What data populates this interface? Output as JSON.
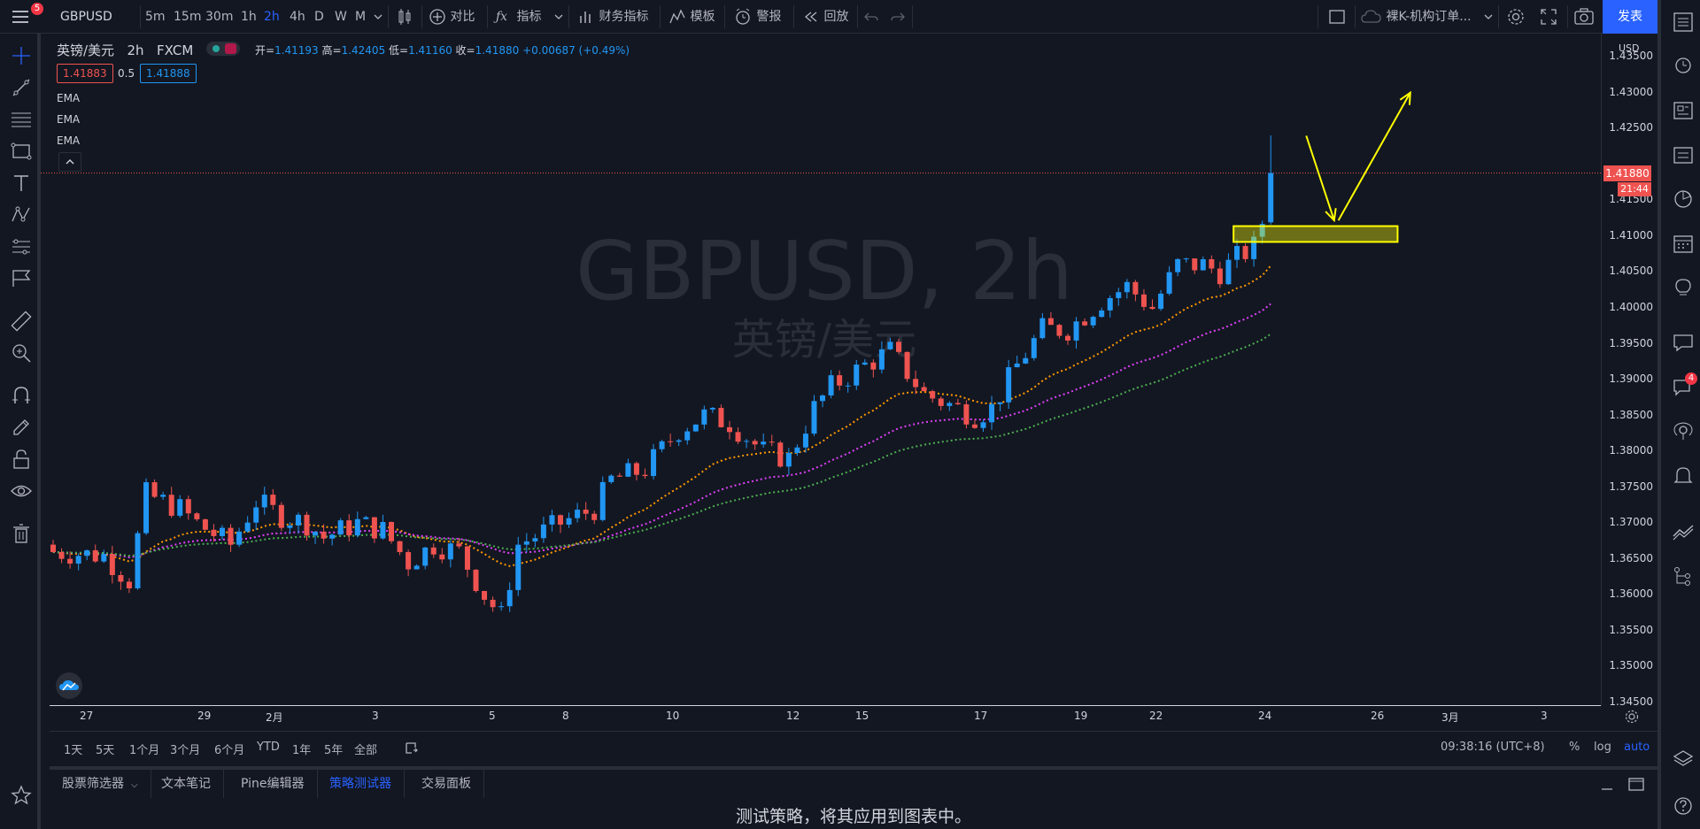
{
  "topbar": {
    "menu_badge": "5",
    "symbol": "GBPUSD",
    "timeframes": [
      "5m",
      "15m",
      "30m",
      "1h",
      "2h",
      "4h",
      "D",
      "W",
      "M"
    ],
    "active_timeframe": "2h",
    "compare": "对比",
    "indicators": "指标",
    "financials": "财务指标",
    "templates": "模板",
    "alerts": "警报",
    "replay": "回放",
    "layout_name": "裸K-机构订单...",
    "publish": "发表"
  },
  "legend": {
    "title": "英镑/美元",
    "interval": "2h",
    "source": "FXCM",
    "open_label": "开=",
    "open": "1.41193",
    "high_label": "高=",
    "high": "1.42405",
    "low_label": "低=",
    "low": "1.41160",
    "close_label": "收=",
    "close": "1.41880",
    "change": "+0.00687 (+0.49%)",
    "bid": "1.41883",
    "spread": "0.5",
    "ask": "1.41888",
    "ema_labels": [
      "EMA",
      "EMA",
      "EMA"
    ]
  },
  "watermark": {
    "main": "GBPUSD, 2h",
    "sub": "英镑/美元"
  },
  "price_axis": {
    "currency": "USD",
    "labels": [
      "1.43500",
      "1.43000",
      "1.42500",
      "1.41500",
      "1.41000",
      "1.40500",
      "1.40000",
      "1.39500",
      "1.39000",
      "1.38500",
      "1.38000",
      "1.37500",
      "1.37000",
      "1.36500",
      "1.36000",
      "1.35500",
      "1.35000",
      "1.34500"
    ],
    "last_price": "1.41880",
    "countdown": "21:44"
  },
  "time_axis": {
    "labels": [
      "27",
      "29",
      "2月",
      "3",
      "5",
      "8",
      "10",
      "12",
      "15",
      "17",
      "19",
      "22",
      "24",
      "26",
      "3月",
      "3"
    ]
  },
  "range_bar": {
    "ranges": [
      "1天",
      "5天",
      "1个月",
      "3个月",
      "6个月",
      "YTD",
      "1年",
      "5年",
      "全部"
    ],
    "clock": "09:38:16 (UTC+8)",
    "percent": "%",
    "log": "log",
    "auto": "auto"
  },
  "bottom_panel": {
    "tabs": [
      "股票筛选器",
      "文本笔记",
      "Pine编辑器",
      "策略测试器",
      "交易面板"
    ],
    "active_tab": "策略测试器",
    "message": "测试策略，将其应用到图表中。"
  },
  "right_badge": "4",
  "colors": {
    "bull": "#2196f3",
    "bear": "#ef5350",
    "ema_fast": "#ff9800",
    "ema_mid": "#e040fb",
    "ema_slow": "#4caf50",
    "accent": "#2962ff",
    "annotation": "#ffff00"
  },
  "chart_data": {
    "type": "candlestick",
    "symbol": "GBPUSD",
    "interval": "2h",
    "ylim": [
      1.345,
      1.437
    ],
    "close_path": [
      [
        0,
        1.366
      ],
      [
        6,
        1.3655
      ],
      [
        9,
        1.362
      ],
      [
        11,
        1.374
      ],
      [
        15,
        1.372
      ],
      [
        17,
        1.37
      ],
      [
        21,
        1.367
      ],
      [
        24,
        1.373
      ],
      [
        27,
        1.371
      ],
      [
        30,
        1.37
      ],
      [
        32,
        1.368
      ],
      [
        36,
        1.37
      ],
      [
        39,
        1.369
      ],
      [
        42,
        1.3645
      ],
      [
        45,
        1.367
      ],
      [
        48,
        1.366
      ],
      [
        51,
        1.36
      ],
      [
        53,
        1.357
      ],
      [
        55,
        1.367
      ],
      [
        60,
        1.37
      ],
      [
        64,
        1.372
      ],
      [
        66,
        1.376
      ],
      [
        70,
        1.3775
      ],
      [
        74,
        1.383
      ],
      [
        77,
        1.385
      ],
      [
        80,
        1.384
      ],
      [
        82,
        1.382
      ],
      [
        84,
        1.38
      ],
      [
        87,
        1.379
      ],
      [
        90,
        1.386
      ],
      [
        92,
        1.389
      ],
      [
        96,
        1.392
      ],
      [
        99,
        1.394
      ],
      [
        101,
        1.391
      ],
      [
        103,
        1.388
      ],
      [
        105,
        1.387
      ],
      [
        107,
        1.386
      ],
      [
        109,
        1.385
      ],
      [
        111,
        1.386
      ],
      [
        114,
        1.392
      ],
      [
        117,
        1.397
      ],
      [
        120,
        1.397
      ],
      [
        124,
        1.401
      ],
      [
        127,
        1.403
      ],
      [
        130,
        1.4
      ],
      [
        133,
        1.406
      ],
      [
        136,
        1.406
      ],
      [
        138,
        1.405
      ],
      [
        140,
        1.407
      ],
      [
        142,
        1.4085
      ],
      [
        143,
        1.412
      ]
    ],
    "last_candle": {
      "open": 1.41193,
      "high": 1.42405,
      "low": 1.4116,
      "close": 1.4188
    },
    "annotations": {
      "zone": {
        "y_low": 1.4092,
        "y_high": 1.4114,
        "x_start": 139.6,
        "x_end": 159
      },
      "arrow_down": {
        "from": [
          148.2,
          1.424
        ],
        "to": [
          151.5,
          1.4122
        ]
      },
      "arrow_up": {
        "from": [
          152,
          1.4122
        ],
        "to": [
          160.5,
          1.43
        ]
      }
    }
  }
}
